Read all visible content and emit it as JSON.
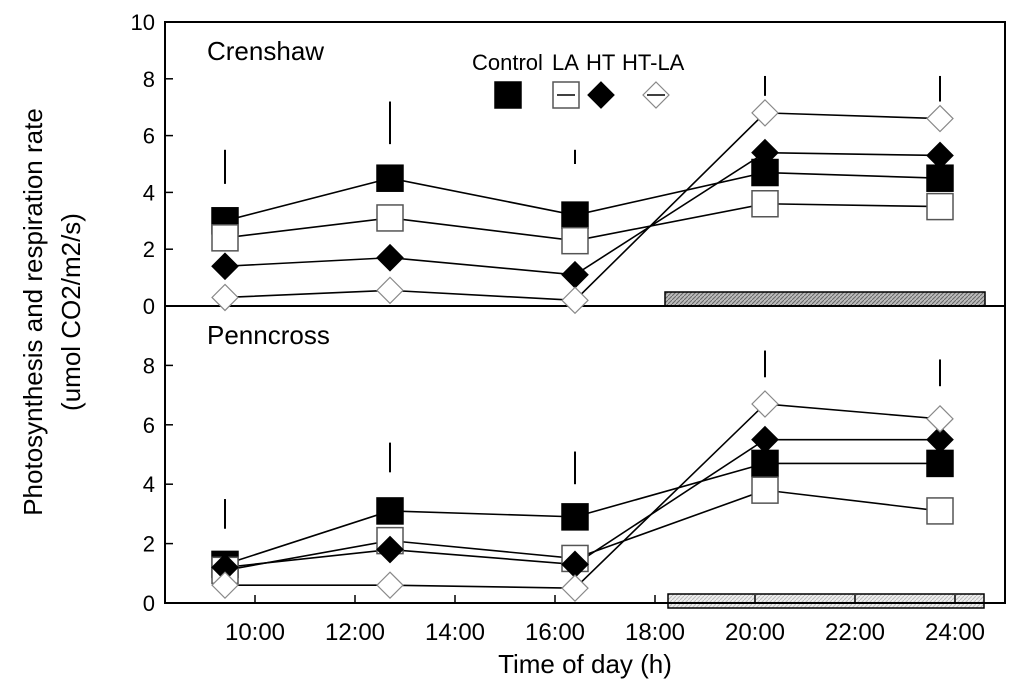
{
  "chart_data": [
    {
      "type": "line",
      "title": "Crenshaw",
      "y_label": [
        "Photosynthesis and respiration rate",
        "(umol CO2/m2/s)"
      ],
      "x": [
        9.4,
        12.7,
        16.4,
        20.2,
        23.7
      ],
      "xlim": [
        8.2,
        25.0
      ],
      "ylim": [
        0,
        10
      ],
      "yticks": [
        0,
        2,
        4,
        6,
        8,
        10
      ],
      "legend": "top",
      "series": [
        {
          "name": "Control",
          "color": "#000000",
          "marker": "square",
          "filled": true,
          "values": [
            3.0,
            4.5,
            3.2,
            4.7,
            4.5
          ]
        },
        {
          "name": "LA",
          "color": "#000000",
          "marker": "square",
          "filled": false,
          "values": [
            2.4,
            3.1,
            2.3,
            3.6,
            3.5
          ]
        },
        {
          "name": "HT",
          "color": "#000000",
          "marker": "diamond",
          "filled": true,
          "values": [
            1.4,
            1.7,
            1.1,
            5.4,
            5.3
          ]
        },
        {
          "name": "HT-LA",
          "color": "#000000",
          "marker": "diamond",
          "filled": false,
          "values": [
            0.3,
            0.55,
            0.2,
            6.8,
            6.6
          ]
        }
      ],
      "lsd_bars": {
        "low": [
          4.3,
          5.7,
          5.0,
          7.4,
          7.2
        ],
        "high": [
          5.5,
          7.2,
          5.5,
          8.1,
          8.1
        ]
      }
    },
    {
      "type": "line",
      "title": "Penncross",
      "x_label": "Time of day (h)",
      "x": [
        9.4,
        12.7,
        16.4,
        20.2,
        23.7
      ],
      "xlim": [
        8.2,
        25.0
      ],
      "xticks": [
        {
          "value": 10,
          "label": "10:00"
        },
        {
          "value": 12,
          "label": "12:00"
        },
        {
          "value": 14,
          "label": "14:00"
        },
        {
          "value": 16,
          "label": "16:00"
        },
        {
          "value": 18,
          "label": "18:00"
        },
        {
          "value": 20,
          "label": "20:00"
        },
        {
          "value": 22,
          "label": "22:00"
        },
        {
          "value": 24,
          "label": "24:00"
        }
      ],
      "ylim": [
        0,
        10
      ],
      "yticks": [
        0,
        2,
        4,
        6,
        8
      ],
      "series": [
        {
          "name": "Control",
          "color": "#000000",
          "marker": "square",
          "filled": true,
          "values": [
            1.3,
            3.1,
            2.9,
            4.7,
            4.7
          ]
        },
        {
          "name": "LA",
          "color": "#000000",
          "marker": "square",
          "filled": false,
          "values": [
            1.1,
            2.1,
            1.5,
            3.8,
            3.1
          ]
        },
        {
          "name": "HT",
          "color": "#000000",
          "marker": "diamond",
          "filled": true,
          "values": [
            1.2,
            1.8,
            1.3,
            5.5,
            5.5
          ]
        },
        {
          "name": "HT-LA",
          "color": "#000000",
          "marker": "diamond",
          "filled": false,
          "values": [
            0.6,
            0.6,
            0.5,
            6.7,
            6.2
          ]
        }
      ],
      "lsd_bars": {
        "low": [
          2.5,
          4.4,
          4.0,
          7.6,
          7.3
        ],
        "high": [
          3.5,
          5.4,
          5.1,
          8.5,
          8.2
        ]
      }
    }
  ]
}
